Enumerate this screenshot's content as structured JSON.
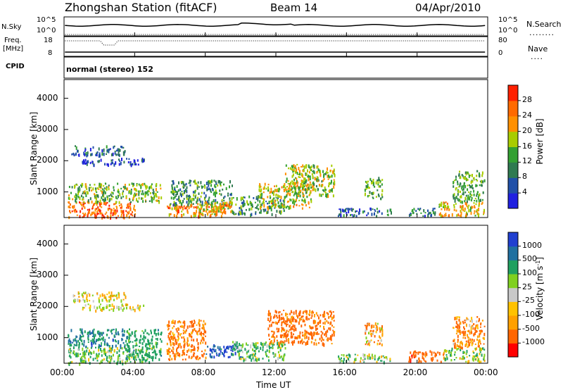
{
  "header": {
    "station": "Zhongshan Station (fitACF)",
    "beam": "Beam 14",
    "date": "04/Apr/2010"
  },
  "top_panels": {
    "nsky_label": "N.Sky",
    "nsky_ticks": [
      "10^5",
      "10^0"
    ],
    "nsearch_label": "N.Search",
    "nsearch_ticks": [
      "10^5",
      "10^0"
    ],
    "freq_label": "Freq.",
    "freq_unit": "[MHz]",
    "freq_ticks": [
      "18",
      "8"
    ],
    "nave_label": "Nave",
    "nave_ticks": [
      "80",
      "0"
    ],
    "cpid_label": "CPID",
    "cpid_text": "normal (stereo) 152"
  },
  "x_axis": {
    "label": "Time UT",
    "ticks": [
      "00:00",
      "04:00",
      "08:00",
      "12:00",
      "16:00",
      "20:00",
      "00:00"
    ]
  },
  "colors": {
    "power": [
      "#2020e0",
      "#2050a8",
      "#2f7a50",
      "#33a032",
      "#a8cc00",
      "#ff9000",
      "#ff6a00",
      "#ff2000"
    ],
    "velocity": [
      "#ff0000",
      "#ff6600",
      "#ffa000",
      "#ffc200",
      "#c8c8c8",
      "#80d020",
      "#20a060",
      "#2070a0",
      "#2040d0"
    ]
  },
  "chart_data": [
    {
      "type": "heatmap",
      "name": "power-panel",
      "ylabel": "Slant Range [km]",
      "y_ticks": [
        1000,
        2000,
        3000,
        4000
      ],
      "ylim": [
        180,
        4600
      ],
      "xlim_hours": [
        0,
        24
      ],
      "colorbar_label": "Power [dB]",
      "colorbar_ticks": [
        "28",
        "24",
        "20",
        "16",
        "12",
        "8",
        "4"
      ],
      "colorbar_range": [
        0,
        32
      ],
      "regions": [
        {
          "t": [
            0.2,
            4.0
          ],
          "r": [
            200,
            700
          ],
          "v": 26
        },
        {
          "t": [
            0.2,
            5.5
          ],
          "r": [
            700,
            1300
          ],
          "v": 15
        },
        {
          "t": [
            0.4,
            3.5
          ],
          "r": [
            2200,
            2500
          ],
          "v": 7
        },
        {
          "t": [
            1.0,
            4.5
          ],
          "r": [
            1900,
            2100
          ],
          "v": 5
        },
        {
          "t": [
            5.8,
            9.2
          ],
          "r": [
            250,
            650
          ],
          "v": 24
        },
        {
          "t": [
            6.0,
            9.5
          ],
          "r": [
            600,
            1400
          ],
          "v": 12
        },
        {
          "t": [
            7.5,
            9.5
          ],
          "r": [
            300,
            700
          ],
          "v": 20
        },
        {
          "t": [
            9.5,
            12.5
          ],
          "r": [
            300,
            900
          ],
          "v": 11
        },
        {
          "t": [
            11.0,
            14.0
          ],
          "r": [
            500,
            1300
          ],
          "v": 19
        },
        {
          "t": [
            12.5,
            15.3
          ],
          "r": [
            900,
            1900
          ],
          "v": 17
        },
        {
          "t": [
            15.5,
            18.5
          ],
          "r": [
            250,
            500
          ],
          "v": 7
        },
        {
          "t": [
            17.0,
            18.0
          ],
          "r": [
            800,
            1500
          ],
          "v": 14
        },
        {
          "t": [
            19.5,
            21.0
          ],
          "r": [
            250,
            500
          ],
          "v": 9
        },
        {
          "t": [
            21.2,
            23.8
          ],
          "r": [
            250,
            700
          ],
          "v": 20
        },
        {
          "t": [
            22.0,
            23.8
          ],
          "r": [
            700,
            1700
          ],
          "v": 14
        }
      ]
    },
    {
      "type": "heatmap",
      "name": "velocity-panel",
      "ylabel": "Slant Range [km]",
      "y_ticks": [
        1000,
        2000,
        3000,
        4000
      ],
      "ylim": [
        180,
        4600
      ],
      "xlim_hours": [
        0,
        24
      ],
      "colorbar_label": "Velocity [m s^-1]",
      "colorbar_unit_main": "Velocity [m s",
      "colorbar_unit_exp": "-1",
      "colorbar_unit_close": "]",
      "colorbar_ticks": [
        "1000",
        "500",
        "100",
        "25",
        "-25",
        "-100",
        "-500",
        "-1000"
      ],
      "regions": [
        {
          "t": [
            0.2,
            3.5
          ],
          "r": [
            700,
            1300
          ],
          "v": 500
        },
        {
          "t": [
            0.2,
            5.0
          ],
          "r": [
            200,
            700
          ],
          "v": 100
        },
        {
          "t": [
            0.4,
            3.5
          ],
          "r": [
            2200,
            2500
          ],
          "v": 0
        },
        {
          "t": [
            1.0,
            4.5
          ],
          "r": [
            1900,
            2100
          ],
          "v": 0
        },
        {
          "t": [
            3.5,
            5.5
          ],
          "r": [
            300,
            1300
          ],
          "v": 300
        },
        {
          "t": [
            5.8,
            8.0
          ],
          "r": [
            300,
            1600
          ],
          "v": -150
        },
        {
          "t": [
            8.0,
            10.0
          ],
          "r": [
            400,
            800
          ],
          "v": 900
        },
        {
          "t": [
            9.5,
            12.5
          ],
          "r": [
            300,
            900
          ],
          "v": 120
        },
        {
          "t": [
            11.5,
            15.3
          ],
          "r": [
            800,
            1900
          ],
          "v": -200
        },
        {
          "t": [
            15.5,
            18.5
          ],
          "r": [
            250,
            500
          ],
          "v": 60
        },
        {
          "t": [
            17.0,
            18.0
          ],
          "r": [
            800,
            1500
          ],
          "v": -80
        },
        {
          "t": [
            19.5,
            21.5
          ],
          "r": [
            250,
            600
          ],
          "v": -300
        },
        {
          "t": [
            21.5,
            23.8
          ],
          "r": [
            250,
            700
          ],
          "v": 60
        },
        {
          "t": [
            22.0,
            23.8
          ],
          "r": [
            700,
            1700
          ],
          "v": -120
        }
      ]
    }
  ]
}
